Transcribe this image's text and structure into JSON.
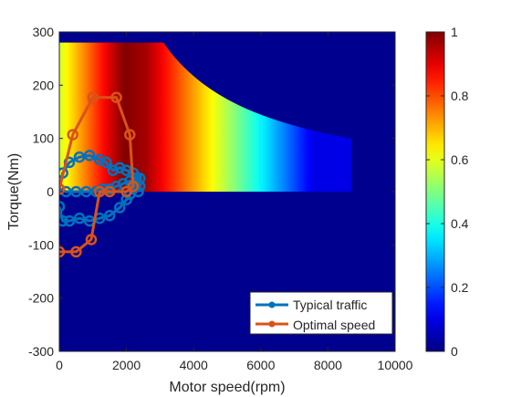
{
  "chart_data": {
    "type": "heatmap",
    "xlabel": "Motor speed(rpm)",
    "ylabel": "Torque(Nm)",
    "xlim": [
      0,
      10000
    ],
    "ylim": [
      -300,
      300
    ],
    "x_ticks": [
      0,
      2000,
      4000,
      6000,
      8000,
      10000
    ],
    "y_ticks": [
      -300,
      -200,
      -100,
      0,
      100,
      200,
      300
    ],
    "colorbar": {
      "range": [
        0,
        1
      ],
      "ticks": [
        0,
        0.2,
        0.4,
        0.6,
        0.8,
        1
      ],
      "colormap": "jet"
    },
    "heatmap": {
      "torque_max": 280,
      "base_speed": 3100,
      "max_speed": 8700,
      "description_values": "efficiency-like field peaking near 2200 rpm at positive torque; negative torque region at 0"
    },
    "legend": {
      "location": "bottom-right"
    },
    "series": [
      {
        "name": "Typical traffic",
        "color": "#0072BD",
        "x": [
          0,
          100,
          300,
          600,
          900,
          1200,
          1500,
          1800,
          2000,
          2100,
          2200,
          2300,
          2400,
          2200,
          2000,
          1800,
          1600,
          1400,
          1200,
          900,
          600,
          300,
          100,
          0,
          200,
          500,
          800,
          1100,
          1300,
          1500,
          1700,
          1900,
          2100,
          2300,
          2400,
          2350
        ],
        "y": [
          -28,
          -55,
          -55,
          -50,
          -55,
          -50,
          -45,
          -30,
          -15,
          -5,
          5,
          15,
          25,
          35,
          40,
          45,
          40,
          55,
          60,
          68,
          65,
          55,
          35,
          5,
          0,
          0,
          0,
          0,
          5,
          5,
          10,
          15,
          20,
          25,
          10,
          0
        ]
      },
      {
        "name": "Optimal speed",
        "color": "#D95319",
        "x": [
          0,
          0,
          400,
          1000,
          1700,
          2100,
          2200,
          2000,
          1500,
          1200,
          950,
          500,
          0
        ],
        "y": [
          5,
          5,
          107,
          177,
          177,
          107,
          10,
          0,
          0,
          0,
          -90,
          -113,
          -113
        ]
      }
    ]
  }
}
